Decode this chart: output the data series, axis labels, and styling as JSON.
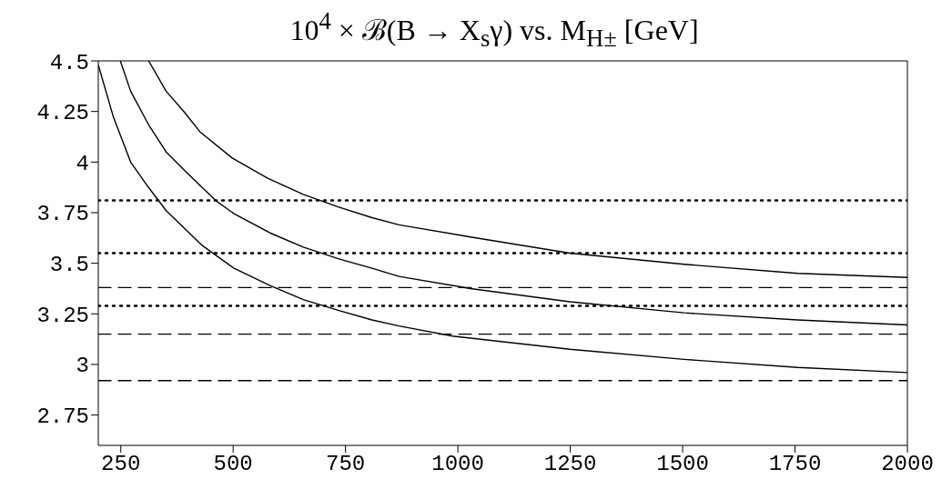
{
  "chart_data": {
    "type": "line",
    "title": "10$^{4}$ × ℬ(B → X$_{s}$γ) vs. M$_{H±}$ [GeV]",
    "series": [
      {
        "color": "#000000",
        "x": [
          200,
          234,
          272,
          310,
          351,
          430,
          502,
          582,
          656,
          737,
          809,
          869,
          988,
          1249,
          1503,
          1756,
          2000
        ],
        "values": [
          4.48,
          4.22,
          4.0,
          3.88,
          3.76,
          3.59,
          3.475,
          3.39,
          3.32,
          3.265,
          3.22,
          3.19,
          3.14,
          3.075,
          3.025,
          2.985,
          2.96
        ]
      },
      {
        "color": "#000000",
        "x": [
          249,
          272,
          313,
          351,
          396,
          461,
          502,
          582,
          656,
          737,
          809,
          869,
          1028,
          1249,
          1503,
          1756,
          2000
        ],
        "values": [
          4.5,
          4.35,
          4.18,
          4.05,
          3.95,
          3.81,
          3.745,
          3.65,
          3.58,
          3.52,
          3.475,
          3.435,
          3.375,
          3.31,
          3.255,
          3.22,
          3.195
        ]
      },
      {
        "color": "#000000",
        "x": [
          312,
          351,
          392,
          426,
          498,
          577,
          656,
          732,
          809,
          869,
          1028,
          1249,
          1503,
          1756,
          2000
        ],
        "values": [
          4.5,
          4.35,
          4.245,
          4.15,
          4.02,
          3.92,
          3.84,
          3.78,
          3.725,
          3.69,
          3.63,
          3.55,
          3.495,
          3.45,
          3.43
        ]
      }
    ],
    "xlim": [
      200,
      2000
    ],
    "xticks": [
      250,
      500,
      750,
      1000,
      1250,
      1500,
      1750,
      2000
    ],
    "ylim": [
      2.6,
      4.5
    ],
    "yticks": [
      2.75,
      3,
      3.25,
      3.5,
      3.75,
      4,
      4.25,
      4.5
    ],
    "ref_lines": [
      {
        "axis": "y",
        "value": 3.81,
        "line_style": "dotted"
      },
      {
        "axis": "y",
        "value": 3.55,
        "line_style": "dotted"
      },
      {
        "axis": "y",
        "value": 3.29,
        "line_style": "dotted"
      },
      {
        "axis": "y",
        "value": 3.38,
        "line_style": "dashed"
      },
      {
        "axis": "y",
        "value": 3.15,
        "line_style": "dashed"
      },
      {
        "axis": "y",
        "value": 2.92,
        "line_style": "dashed"
      }
    ],
    "grid": false,
    "legend": false,
    "marker": "none",
    "line_style": "solid"
  }
}
